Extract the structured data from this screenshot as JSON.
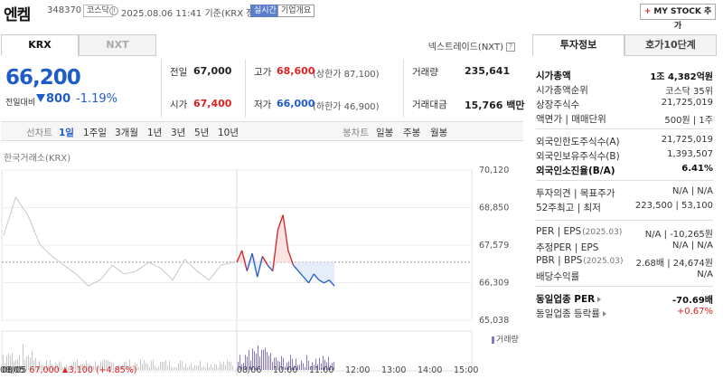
{
  "header": {
    "name": "엔켐",
    "code": "348370",
    "market": "코스닥",
    "datetime": "2025.08.06 11:41",
    "basis": "기준(KRX 장중)",
    "realtime_badge": "실시간",
    "overview_badge": "기업개요",
    "mystock_label": "MY STOCK 추가",
    "mystock_plus": "+"
  },
  "exchange_tabs": [
    "KRX",
    "NXT"
  ],
  "nxt_note": "넥스트레이드(NXT)",
  "help_glyph": "?",
  "quote": {
    "price": "66,200",
    "change_label": "전일대비",
    "change": "800",
    "change_pct": "-1.19%"
  },
  "stats": {
    "prev_close_label": "전일",
    "prev_close": "67,000",
    "open_label": "시가",
    "open": "67,400",
    "high_label": "고가",
    "high": "68,600",
    "upper_limit": "(상한가 87,100)",
    "low_label": "저가",
    "low": "66,000",
    "lower_limit": "(하한가 46,900)",
    "volume_label": "거래량",
    "volume": "235,641",
    "turnover_label": "거래대금",
    "turnover": "15,766",
    "turnover_unit": "백만"
  },
  "period_bar": {
    "line_label": "선차트",
    "line_periods": [
      "1일",
      "1주일",
      "3개월",
      "1년",
      "3년",
      "5년",
      "10년"
    ],
    "active_period": "1일",
    "candle_label": "봉차트",
    "candle_periods": [
      "일봉",
      "주봉",
      "월봉"
    ]
  },
  "chart_source": "한국거래소(KRX)",
  "volume_legend": "거래량",
  "prev_day_summary": {
    "date": "08/05",
    "close": "67,000",
    "change": "3,100",
    "change_pct": "(+4.85%)"
  },
  "chart_data": {
    "type": "line",
    "y_ticks": [
      "70,120",
      "68,850",
      "67,579",
      "66,309",
      "65,038"
    ],
    "ylim": [
      65038,
      70120
    ],
    "x_ticks": [
      "08/05",
      "08/06",
      "10:00",
      "11:00",
      "12:00",
      "13:00",
      "14:00",
      "15:00"
    ],
    "reference_price": 67000,
    "prev_day_series_values": [
      67900,
      69200,
      68600,
      67600,
      67200,
      66900,
      66600,
      66200,
      66400,
      66900,
      66600,
      66700,
      67000,
      66800,
      66400,
      67100,
      66700,
      66400,
      66900,
      67000
    ],
    "today_series_values": [
      67000,
      67400,
      66700,
      67300,
      66500,
      67200,
      66900,
      66700,
      68100,
      68600,
      67400,
      66900,
      66700,
      66500,
      66300,
      66600,
      66400,
      66300,
      66400,
      66200
    ],
    "today_color_above": "#d22222",
    "today_color_below": "#1f5cc8",
    "prev_day_color": "#c8c8c8"
  },
  "right_panel": {
    "tabs": [
      "투자정보",
      "호가10단계"
    ],
    "group1": [
      {
        "label": "시가총액",
        "value": "1조 4,382억원",
        "bold": true
      },
      {
        "label": "시가총액순위",
        "value": "코스닥 35위"
      },
      {
        "label": "상장주식수",
        "value": "21,725,019"
      },
      {
        "label": "액면가 | 매매단위",
        "value": "500원 | 1주"
      }
    ],
    "group2": [
      {
        "label": "외국인한도주식수(A)",
        "value": "21,725,019"
      },
      {
        "label": "외국인보유주식수(B)",
        "value": "1,393,507"
      },
      {
        "label": "외국인소진율(B/A)",
        "value": "6.41%",
        "bold": true
      }
    ],
    "group3": [
      {
        "label": "투자의견 | 목표주가",
        "value": "N/A | N/A"
      },
      {
        "label": "52주최고 | 최저",
        "value": "223,500 | 53,100"
      }
    ],
    "group4": [
      {
        "label": "PER | EPS",
        "note": "(2025.03)",
        "value": "N/A | -10,265원"
      },
      {
        "label": "추정PER | EPS",
        "value": "N/A | N/A"
      },
      {
        "label": "PBR | BPS",
        "note": "(2025.03)",
        "value": "2.68배 | 24,674원"
      },
      {
        "label": "배당수익률",
        "value": "N/A"
      }
    ],
    "group5": [
      {
        "label": "동일업종 PER",
        "value": "-70.69배",
        "bold": true
      },
      {
        "label": "동일업종 등락률",
        "value": "+0.67%",
        "red": true
      }
    ]
  }
}
